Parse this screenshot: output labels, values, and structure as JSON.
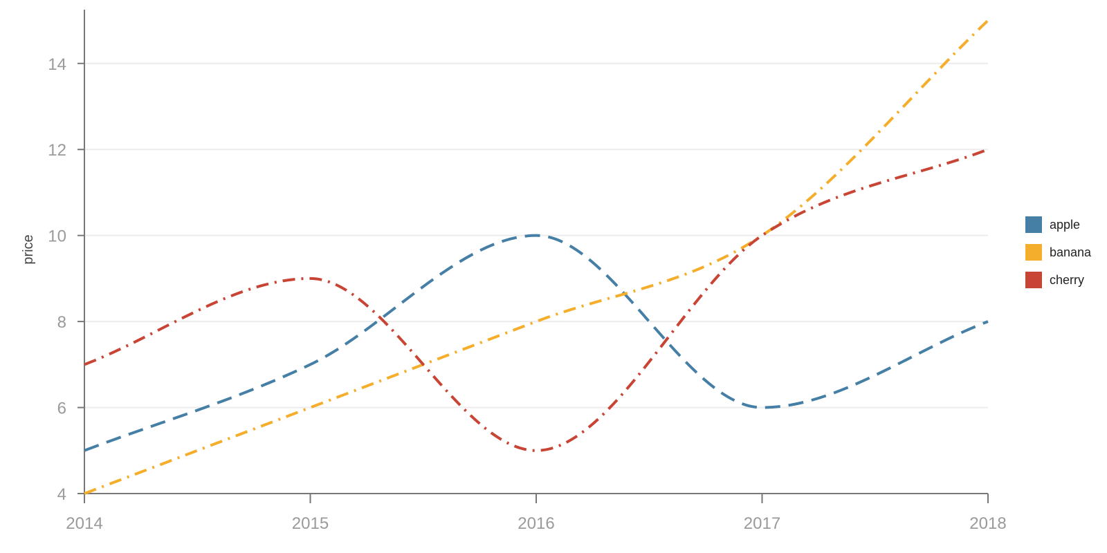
{
  "chart_data": {
    "type": "line",
    "title": "",
    "xlabel": "",
    "ylabel": "price",
    "x": [
      2014,
      2015,
      2016,
      2017,
      2018
    ],
    "x_ticks": [
      "2014",
      "2015",
      "2016",
      "2017",
      "2018"
    ],
    "y_ticks": [
      "4",
      "6",
      "8",
      "10",
      "12",
      "14"
    ],
    "xlim": [
      2014,
      2018
    ],
    "ylim": [
      4,
      15.25
    ],
    "grid": "horizontal",
    "legend_position": "right",
    "series": [
      {
        "name": "apple",
        "values": [
          5,
          7,
          10,
          6,
          8
        ],
        "color": "#457fa5",
        "dash": "dashed"
      },
      {
        "name": "banana",
        "values": [
          4,
          6,
          8,
          10,
          15
        ],
        "color": "#f5ae2b",
        "dash": "dash-dot"
      },
      {
        "name": "cherry",
        "values": [
          7,
          9,
          5,
          10,
          12
        ],
        "color": "#c84434",
        "dash": "dash-dot"
      }
    ]
  }
}
